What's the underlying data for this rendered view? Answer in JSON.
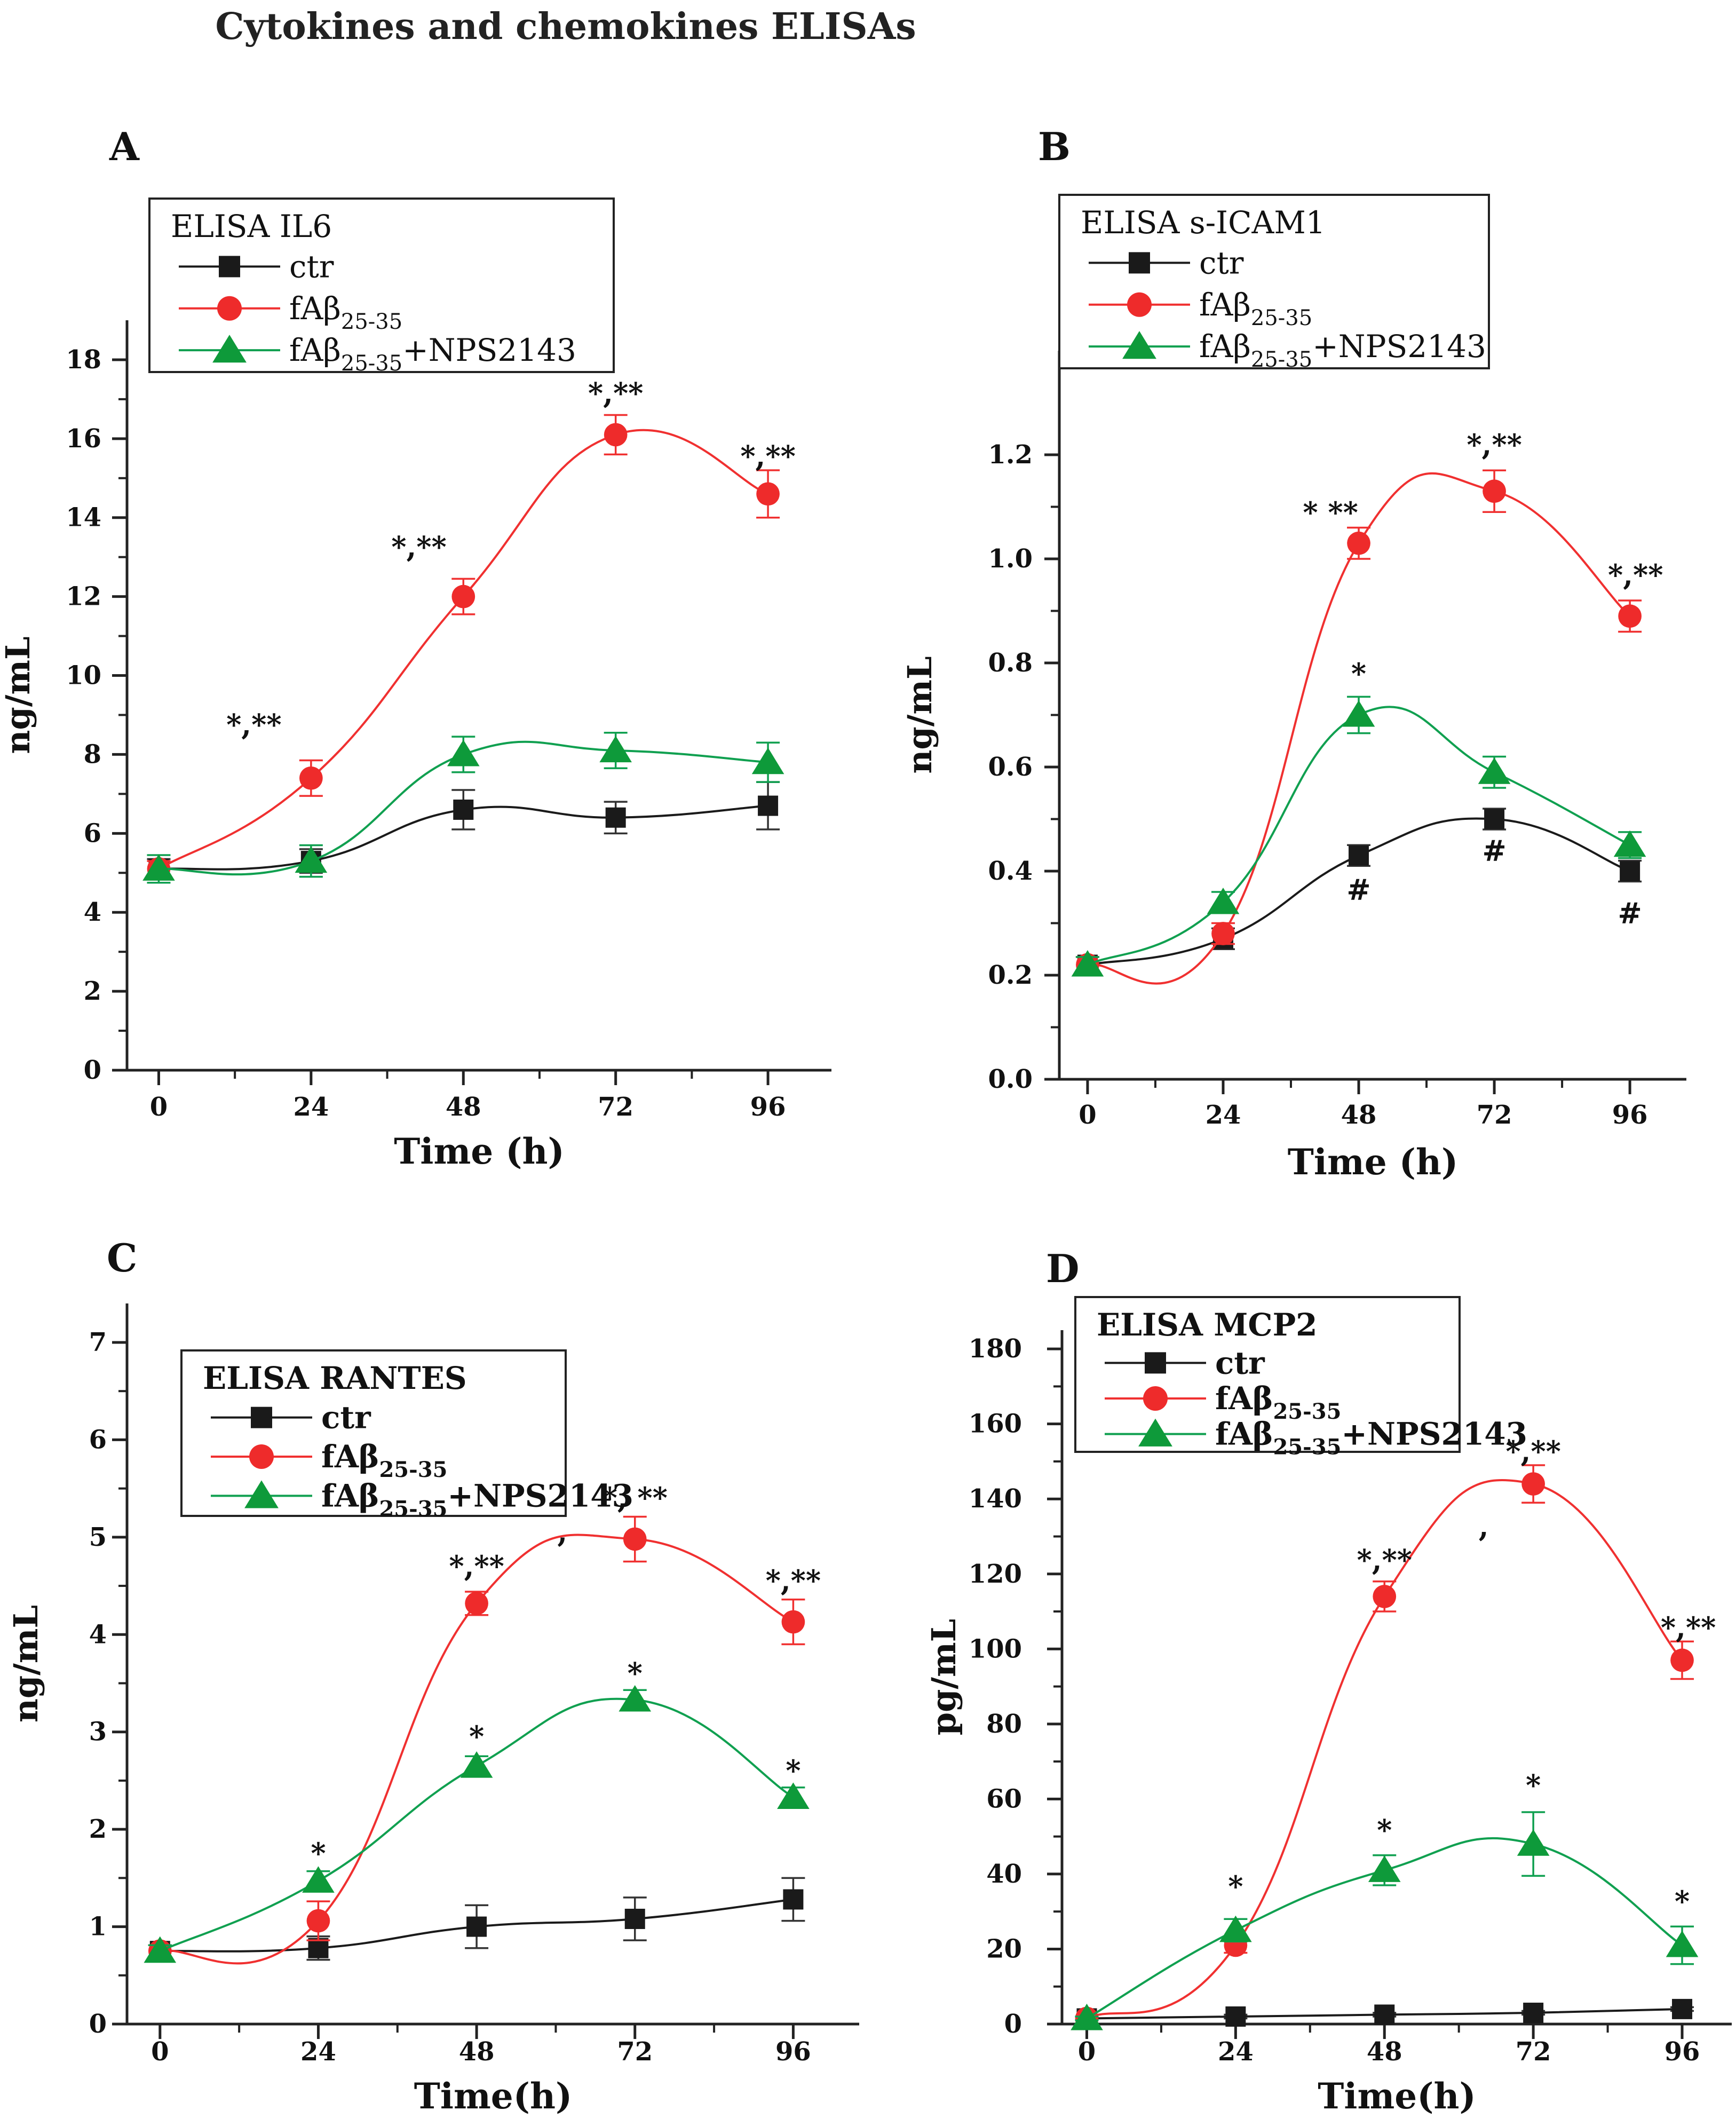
{
  "title": "Cytokines and chemokines ELISAs",
  "colors": {
    "ctr": "#1a1a1a",
    "fab": "#ee2b2b",
    "nps": "#0e9a3a",
    "fab_line": "#f03030",
    "nps_line": "#10a050"
  },
  "chart_data": [
    {
      "type": "line",
      "panel": "A",
      "legend_title": "ELISA IL6",
      "legend_position": "top-left",
      "x": [
        0,
        24,
        48,
        72,
        96
      ],
      "xlabel": "Time (h)",
      "ylabel": "ng/mL",
      "xlim": [
        -5,
        106
      ],
      "ylim": [
        0,
        19
      ],
      "xticks": [
        0,
        24,
        48,
        72,
        96
      ],
      "yticks": [
        0,
        2,
        4,
        6,
        8,
        10,
        12,
        14,
        16,
        18
      ],
      "series": [
        {
          "key": "ctr",
          "name": "ctr",
          "sub": "",
          "suffix": "",
          "marker": "square",
          "values": [
            5.1,
            5.3,
            6.6,
            6.4,
            6.7
          ],
          "errors": [
            0.25,
            0.3,
            0.5,
            0.4,
            0.6
          ]
        },
        {
          "key": "fab",
          "name": "fAβ",
          "sub": "25-35",
          "suffix": "",
          "marker": "circle",
          "values": [
            5.1,
            7.4,
            12.0,
            16.1,
            14.6
          ],
          "errors": [
            0.2,
            0.45,
            0.45,
            0.5,
            0.6
          ]
        },
        {
          "key": "nps",
          "name": "fAβ",
          "sub": "25-35",
          "suffix": "+NPS2143",
          "marker": "triangle",
          "values": [
            5.1,
            5.3,
            8.0,
            8.1,
            7.8
          ],
          "errors": [
            0.35,
            0.4,
            0.45,
            0.45,
            0.5
          ]
        }
      ],
      "annotations": [
        {
          "text": "*,**",
          "x": 15,
          "y": 8.5
        },
        {
          "text": "*,**",
          "x": 41,
          "y": 13.0
        },
        {
          "text": "*,**",
          "x": 72,
          "y": 16.9
        },
        {
          "text": "*,**",
          "x": 96,
          "y": 15.3
        }
      ]
    },
    {
      "type": "line",
      "panel": "B",
      "legend_title": "ELISA s-ICAM1",
      "legend_position": "top-left",
      "x": [
        0,
        24,
        48,
        72,
        96
      ],
      "xlabel": "Time (h)",
      "ylabel": "ng/mL",
      "xlim": [
        -5,
        106
      ],
      "ylim": [
        0,
        1.4
      ],
      "xticks": [
        0,
        24,
        48,
        72,
        96
      ],
      "yticks": [
        0.0,
        0.2,
        0.4,
        0.6,
        0.8,
        1.0,
        1.2
      ],
      "ytick_labels": [
        "0.0",
        "0.2",
        "0.4",
        "0.6",
        "0.8",
        "1.0",
        "1.2"
      ],
      "series": [
        {
          "key": "ctr",
          "name": "ctr",
          "sub": "",
          "suffix": "",
          "marker": "square",
          "values": [
            0.22,
            0.27,
            0.43,
            0.5,
            0.4
          ],
          "errors": [
            0.015,
            0.02,
            0.02,
            0.02,
            0.02
          ]
        },
        {
          "key": "fab",
          "name": "fAβ",
          "sub": "25-35",
          "suffix": "",
          "marker": "circle",
          "values": [
            0.22,
            0.28,
            1.03,
            1.13,
            0.89
          ],
          "errors": [
            0.015,
            0.02,
            0.03,
            0.04,
            0.03
          ]
        },
        {
          "key": "nps",
          "name": "fAβ",
          "sub": "25-35",
          "suffix": "+NPS2143",
          "marker": "triangle",
          "values": [
            0.22,
            0.34,
            0.7,
            0.59,
            0.45
          ],
          "errors": [
            0.015,
            0.02,
            0.035,
            0.03,
            0.025
          ]
        }
      ],
      "annotations": [
        {
          "text": "*  **",
          "x": 43,
          "y": 1.07
        },
        {
          "text": "*,**",
          "x": 72,
          "y": 1.2
        },
        {
          "text": "*,**",
          "x": 97,
          "y": 0.95
        },
        {
          "text": "*",
          "x": 48,
          "y": 0.76
        },
        {
          "text": "#",
          "x": 48,
          "y": 0.345
        },
        {
          "text": "#",
          "x": 72,
          "y": 0.42
        },
        {
          "text": "#",
          "x": 96,
          "y": 0.3
        }
      ]
    },
    {
      "type": "line",
      "panel": "C",
      "legend_title": "ELISA RANTES",
      "legend_position": "top-left",
      "x": [
        0,
        24,
        48,
        72,
        96
      ],
      "xlabel": "Time(h)",
      "ylabel": "ng/mL",
      "xlim": [
        -5,
        106
      ],
      "ylim": [
        0,
        7.4
      ],
      "xticks": [
        0,
        24,
        48,
        72,
        96
      ],
      "yticks": [
        0,
        1,
        2,
        3,
        4,
        5,
        6,
        7
      ],
      "series": [
        {
          "key": "ctr",
          "name": "ctr",
          "sub": "",
          "suffix": "",
          "marker": "square",
          "values": [
            0.75,
            0.78,
            1.0,
            1.08,
            1.28
          ],
          "errors": [
            0.06,
            0.12,
            0.22,
            0.22,
            0.22
          ]
        },
        {
          "key": "fab",
          "name": "fAβ",
          "sub": "25-35",
          "suffix": "",
          "marker": "circle",
          "values": [
            0.75,
            1.06,
            4.32,
            4.98,
            4.13
          ],
          "errors": [
            0.06,
            0.2,
            0.12,
            0.23,
            0.23
          ]
        },
        {
          "key": "nps",
          "name": "fAβ",
          "sub": "25-35",
          "suffix": "+NPS2143",
          "marker": "triangle",
          "values": [
            0.75,
            1.47,
            2.65,
            3.33,
            2.33
          ],
          "errors": [
            0.06,
            0.1,
            0.1,
            0.1,
            0.1
          ]
        }
      ],
      "annotations": [
        {
          "text": "*,**",
          "x": 48,
          "y": 4.6
        },
        {
          "text": "*, **",
          "x": 72,
          "y": 5.3
        },
        {
          "text": "*,**",
          "x": 96,
          "y": 4.45
        },
        {
          "text": ",",
          "x": 61,
          "y": 4.95
        },
        {
          "text": "*",
          "x": 24,
          "y": 1.65
        },
        {
          "text": "*",
          "x": 48,
          "y": 2.85
        },
        {
          "text": "*",
          "x": 72,
          "y": 3.5
        },
        {
          "text": "*",
          "x": 96,
          "y": 2.5
        }
      ]
    },
    {
      "type": "line",
      "panel": "D",
      "legend_title": "ELISA MCP2",
      "legend_position": "top-left",
      "x": [
        0,
        24,
        48,
        72,
        96
      ],
      "xlabel": "Time(h)",
      "ylabel": "pg/mL",
      "xlim": [
        -4,
        104
      ],
      "ylim": [
        0,
        185
      ],
      "xticks": [
        0,
        24,
        48,
        72,
        96
      ],
      "yticks": [
        0,
        20,
        40,
        60,
        80,
        100,
        120,
        140,
        160,
        180
      ],
      "series": [
        {
          "key": "ctr",
          "name": "ctr",
          "sub": "",
          "suffix": "",
          "marker": "square",
          "values": [
            1.5,
            2,
            2.5,
            3,
            4
          ],
          "errors": [
            0.5,
            0.5,
            0.5,
            0.5,
            0.5
          ]
        },
        {
          "key": "fab",
          "name": "fAβ",
          "sub": "25-35",
          "suffix": "",
          "marker": "circle",
          "values": [
            1.5,
            21,
            114,
            144,
            97
          ],
          "errors": [
            0.5,
            2,
            4,
            5,
            5
          ]
        },
        {
          "key": "nps",
          "name": "fAβ",
          "sub": "25-35",
          "suffix": "+NPS2143",
          "marker": "triangle",
          "values": [
            1.5,
            25,
            41,
            48,
            21
          ],
          "errors": [
            0.5,
            3,
            4,
            8.5,
            5
          ]
        }
      ],
      "annotations": [
        {
          "text": "*,**",
          "x": 48,
          "y": 121
        },
        {
          "text": "*,**",
          "x": 72,
          "y": 150
        },
        {
          "text": "*,**",
          "x": 97,
          "y": 103
        },
        {
          "text": ",",
          "x": 64,
          "y": 130
        },
        {
          "text": "*",
          "x": 24,
          "y": 34
        },
        {
          "text": "*",
          "x": 48,
          "y": 49
        },
        {
          "text": "*",
          "x": 72,
          "y": 61
        },
        {
          "text": "*",
          "x": 96,
          "y": 30
        }
      ]
    }
  ]
}
